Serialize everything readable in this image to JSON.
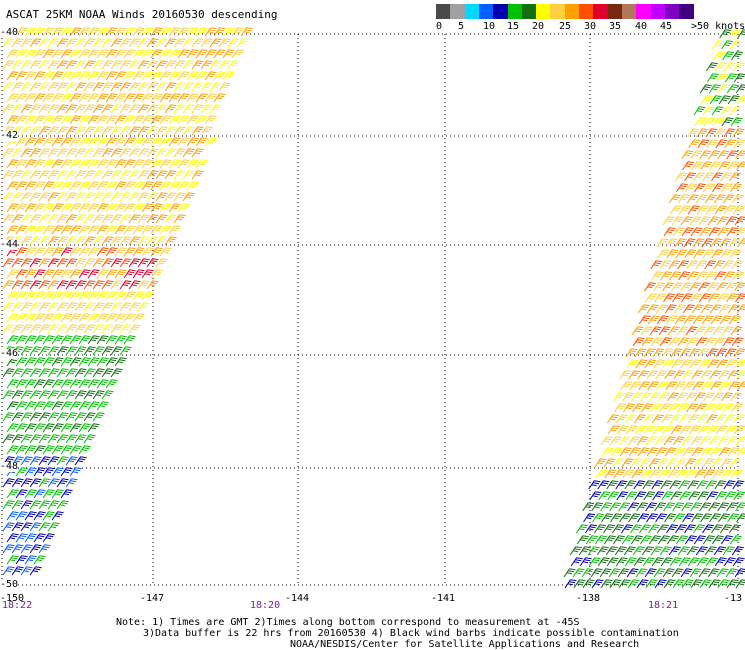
{
  "title": "ASCAT 25KM NOAA Winds 20160530 descending",
  "legend": {
    "colors": [
      "#4a4a4a",
      "#a0a0a0",
      "#00d8ff",
      "#0060ff",
      "#0000b0",
      "#00c000",
      "#107010",
      "#ffff00",
      "#ffd040",
      "#ffa000",
      "#ff5000",
      "#e0002c",
      "#7a2810",
      "#b0785a",
      "#ff00ff",
      "#c000ff",
      "#8000c0",
      "#400080"
    ],
    "labels": [
      "0",
      "5",
      "10",
      "15",
      "20",
      "25",
      "30",
      "35",
      "40",
      "45",
      ">50 knots"
    ]
  },
  "axes": {
    "lat_labels": [
      "-40",
      "-42",
      "-44",
      "-46",
      "-48",
      "-50"
    ],
    "lon_labels": [
      "-150",
      "-147",
      "-144",
      "-141",
      "-138",
      "-13"
    ]
  },
  "times": [
    "18:22",
    "18:20",
    "18:21"
  ],
  "notes": [
    "Note: 1) Times are GMT 2)Times along bottom correspond to measurement at -45S",
    "3)Data buffer is 22 hrs from 20160530 4) Black wind barbs indicate possible contamination",
    "NOAA/NESDIS/Center for Satellite Applications and Research"
  ]
}
